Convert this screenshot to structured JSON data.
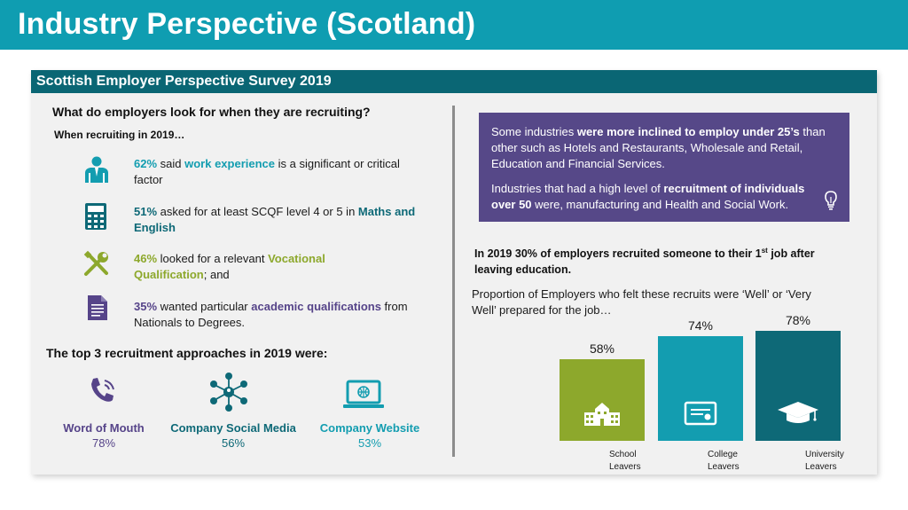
{
  "title": "Industry Perspective (Scotland)",
  "survey_title": "Scottish Employer Perspective Survey 2019",
  "left": {
    "question": "What do employers look for when they are recruiting?",
    "subheading": "When recruiting in 2019…",
    "stats": [
      {
        "pct": "62%",
        "pre": " said ",
        "highlight": "work experience",
        "post": " is a significant or critical factor",
        "icon": "worker-icon"
      },
      {
        "pct": "51%",
        "pre": " asked for at least SCQF level 4 or 5 in ",
        "highlight": "Maths and English",
        "post": "",
        "icon": "calculator-icon"
      },
      {
        "pct": "46%",
        "pre": " looked for a relevant ",
        "highlight": "Vocational Qualification",
        "post": "; and",
        "icon": "tools-icon"
      },
      {
        "pct": "35%",
        "pre": " wanted particular ",
        "highlight": "academic qualifications",
        "post": " from Nationals to Degrees.",
        "icon": "document-icon"
      }
    ],
    "approaches_heading": "The top 3 recruitment approaches in 2019 were:",
    "approaches": [
      {
        "label": "Word of Mouth",
        "value": "78%",
        "icon": "phone-icon",
        "color": "#564489"
      },
      {
        "label": "Company Social Media",
        "value": "56%",
        "icon": "network-icon",
        "color": "#0e6977"
      },
      {
        "label": "Company Website",
        "value": "53%",
        "icon": "laptop-icon",
        "color": "#139db0"
      }
    ]
  },
  "right": {
    "box_p1_pre": "Some industries ",
    "box_p1_bold": "were more inclined to employ under 25’s",
    "box_p1_post": " than other such as Hotels and Restaurants, Wholesale and Retail, Education and Financial Services.",
    "box_p2_pre": "Industries that had a high level of ",
    "box_p2_bold": "recruitment of individuals over 50",
    "box_p2_post": " were, manufacturing and Health and Social Work.",
    "box_icon": "lightbulb-icon",
    "first_job_pre": "In 2019 30% of employers recruited someone to their 1",
    "first_job_sup": "st",
    "first_job_post": " job after leaving education.",
    "proportion_text": "Proportion of Employers who felt these recruits were ‘Well’ or ‘Very Well’  prepared for the job…"
  },
  "chart_data": {
    "type": "bar",
    "categories": [
      "School Leavers",
      "College Leavers",
      "University Leavers"
    ],
    "values": [
      58,
      74,
      78
    ],
    "value_labels": [
      "58%",
      "74%",
      "78%"
    ],
    "category_lines": [
      [
        "School",
        "Leavers"
      ],
      [
        "College",
        "Leavers"
      ],
      [
        "University",
        "Leavers"
      ]
    ],
    "colors": [
      "#8da82c",
      "#139db0",
      "#0e6977"
    ],
    "icons": [
      "school-icon",
      "certificate-icon",
      "graduation-cap-icon"
    ],
    "ylim": [
      0,
      78
    ]
  }
}
